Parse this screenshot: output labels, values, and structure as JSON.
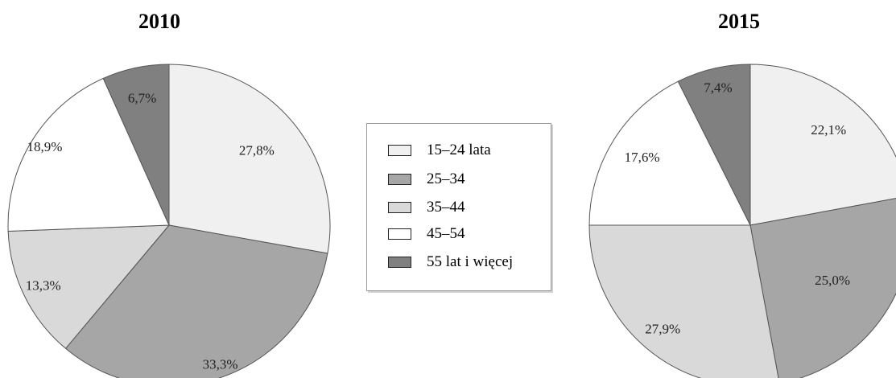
{
  "chart_data": [
    {
      "type": "pie",
      "title": "2010",
      "categories": [
        "15–24 lata",
        "25–34",
        "35–44",
        "45–54",
        "55 lat i więcej"
      ],
      "values": [
        27.8,
        33.3,
        13.3,
        18.9,
        6.7
      ],
      "labels": [
        "27,8%",
        "33,3%",
        "13,3%",
        "18,9%",
        "6,7%"
      ],
      "colors": [
        "#f0f0f0",
        "#a6a6a6",
        "#d9d9d9",
        "#ffffff",
        "#808080"
      ],
      "start": "12 o'clock",
      "direction": "clockwise"
    },
    {
      "type": "pie",
      "title": "2015",
      "categories": [
        "15–24 lata",
        "25–34",
        "35–44",
        "45–54",
        "55 lat i więcej"
      ],
      "values": [
        22.1,
        25.0,
        27.9,
        17.6,
        7.4
      ],
      "labels": [
        "22,1%",
        "25,0%",
        "27,9%",
        "17,6%",
        "7,4%"
      ],
      "colors": [
        "#f0f0f0",
        "#a6a6a6",
        "#d9d9d9",
        "#ffffff",
        "#808080"
      ],
      "start": "12 o'clock",
      "direction": "clockwise"
    }
  ],
  "legend": {
    "placement": "center",
    "items": [
      {
        "label": "15–24 lata",
        "color": "#f0f0f0"
      },
      {
        "label": "25–34",
        "color": "#a6a6a6"
      },
      {
        "label": "35–44",
        "color": "#d9d9d9"
      },
      {
        "label": "45–54",
        "color": "#ffffff"
      },
      {
        "label": "55 lat i więcej",
        "color": "#808080"
      }
    ]
  }
}
